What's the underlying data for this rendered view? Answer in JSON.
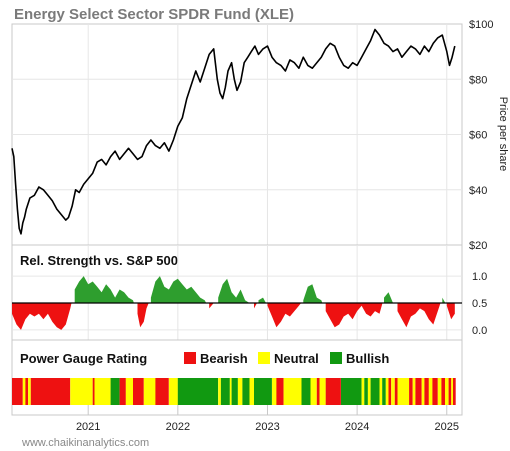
{
  "chart_data": [
    {
      "type": "line",
      "title": "Energy Select Sector SPDR Fund (XLE)",
      "ylabel": "Price per share",
      "ylim": [
        20,
        100
      ],
      "yticks": [
        "$20",
        "$40",
        "$60",
        "$80",
        "$100"
      ],
      "ytick_values": [
        20,
        40,
        60,
        80,
        100
      ],
      "x_range": [
        2020.15,
        2025.17
      ],
      "series": [
        {
          "x": [
            2020.15,
            2020.17,
            2020.19,
            2020.21,
            2020.23,
            2020.25,
            2020.27,
            2020.29,
            2020.31,
            2020.35,
            2020.4,
            2020.45,
            2020.5,
            2020.55,
            2020.6,
            2020.65,
            2020.7,
            2020.75,
            2020.78,
            2020.82,
            2020.86,
            2020.9,
            2020.95,
            2021.0,
            2021.05,
            2021.1,
            2021.15,
            2021.2,
            2021.25,
            2021.3,
            2021.35,
            2021.4,
            2021.45,
            2021.5,
            2021.55,
            2021.6,
            2021.65,
            2021.7,
            2021.75,
            2021.8,
            2021.85,
            2021.9,
            2021.95,
            2022.0,
            2022.05,
            2022.1,
            2022.15,
            2022.2,
            2022.25,
            2022.3,
            2022.35,
            2022.4,
            2022.44,
            2022.47,
            2022.5,
            2022.53,
            2022.56,
            2022.6,
            2022.63,
            2022.66,
            2022.7,
            2022.74,
            2022.78,
            2022.82,
            2022.86,
            2022.9,
            2022.95,
            2023.0,
            2023.05,
            2023.1,
            2023.15,
            2023.2,
            2023.25,
            2023.3,
            2023.35,
            2023.4,
            2023.45,
            2023.5,
            2023.55,
            2023.6,
            2023.65,
            2023.7,
            2023.75,
            2023.8,
            2023.85,
            2023.9,
            2023.95,
            2024.0,
            2024.05,
            2024.1,
            2024.15,
            2024.2,
            2024.25,
            2024.3,
            2024.35,
            2024.4,
            2024.45,
            2024.5,
            2024.55,
            2024.6,
            2024.65,
            2024.7,
            2024.75,
            2024.8,
            2024.85,
            2024.9,
            2024.95,
            2025.0,
            2025.03,
            2025.06,
            2025.09
          ],
          "values": [
            55,
            52,
            42,
            33,
            26,
            24,
            28,
            30,
            33,
            37,
            38,
            41,
            40,
            38,
            36,
            33,
            31,
            29,
            30,
            34,
            40,
            39,
            42,
            44,
            46,
            50,
            51,
            49,
            52,
            54,
            51,
            53,
            55,
            53,
            51,
            52,
            56,
            58,
            56,
            55,
            57,
            54,
            58,
            63,
            66,
            73,
            78,
            83,
            79,
            84,
            89,
            91,
            80,
            75,
            73,
            77,
            83,
            86,
            80,
            76,
            79,
            86,
            88,
            90,
            92,
            89,
            91,
            92,
            88,
            86,
            85,
            83,
            87,
            86,
            84,
            88,
            85,
            84,
            86,
            88,
            91,
            93,
            92,
            88,
            85,
            84,
            86,
            85,
            88,
            91,
            94,
            98,
            96,
            93,
            92,
            90,
            91,
            88,
            90,
            92,
            91,
            89,
            92,
            90,
            93,
            95,
            96,
            90,
            85,
            88,
            92
          ]
        }
      ]
    },
    {
      "type": "area",
      "title": "Rel. Strength vs. S&P 500",
      "ylim": [
        -0.15,
        1.15
      ],
      "baseline": 0.5,
      "yticks": [
        "0.0",
        "0.5",
        "1.0"
      ],
      "ytick_values": [
        0.0,
        0.5,
        1.0
      ],
      "colors": {
        "above": "#2e9e2e",
        "below": "#ee1111"
      },
      "series": [
        {
          "x": [
            2020.15,
            2020.2,
            2020.25,
            2020.3,
            2020.35,
            2020.4,
            2020.45,
            2020.5,
            2020.55,
            2020.6,
            2020.65,
            2020.7,
            2020.75,
            2020.8,
            2020.85,
            2020.9,
            2020.95,
            2021.0,
            2021.05,
            2021.1,
            2021.15,
            2021.2,
            2021.25,
            2021.3,
            2021.35,
            2021.4,
            2021.45,
            2021.5,
            2021.55,
            2021.58,
            2021.62,
            2021.65,
            2021.7,
            2021.75,
            2021.8,
            2021.85,
            2021.9,
            2021.95,
            2022.0,
            2022.05,
            2022.1,
            2022.15,
            2022.2,
            2022.25,
            2022.3,
            2022.35,
            2022.4,
            2022.45,
            2022.5,
            2022.55,
            2022.6,
            2022.65,
            2022.7,
            2022.75,
            2022.8,
            2022.85,
            2022.9,
            2022.95,
            2023.0,
            2023.05,
            2023.1,
            2023.15,
            2023.2,
            2023.25,
            2023.3,
            2023.35,
            2023.4,
            2023.45,
            2023.5,
            2023.55,
            2023.6,
            2023.65,
            2023.7,
            2023.75,
            2023.8,
            2023.85,
            2023.9,
            2023.95,
            2024.0,
            2024.05,
            2024.1,
            2024.15,
            2024.2,
            2024.25,
            2024.3,
            2024.35,
            2024.4,
            2024.45,
            2024.5,
            2024.55,
            2024.6,
            2024.65,
            2024.7,
            2024.75,
            2024.8,
            2024.85,
            2024.9,
            2024.95,
            2025.0,
            2025.05,
            2025.09
          ],
          "values": [
            0.3,
            0.1,
            0.0,
            0.2,
            0.3,
            0.25,
            0.3,
            0.2,
            0.3,
            0.15,
            0.05,
            0.0,
            0.1,
            0.4,
            0.75,
            0.9,
            1.0,
            0.85,
            0.9,
            0.8,
            0.7,
            0.85,
            0.75,
            0.6,
            0.75,
            0.7,
            0.6,
            0.55,
            0.3,
            0.05,
            0.15,
            0.4,
            0.6,
            0.9,
            1.0,
            0.8,
            0.75,
            0.9,
            0.95,
            0.85,
            0.75,
            0.8,
            0.7,
            0.6,
            0.55,
            0.4,
            0.5,
            0.6,
            0.85,
            0.95,
            0.7,
            0.6,
            0.75,
            0.55,
            0.5,
            0.4,
            0.55,
            0.6,
            0.45,
            0.25,
            0.05,
            0.15,
            0.3,
            0.25,
            0.35,
            0.45,
            0.55,
            0.8,
            0.85,
            0.6,
            0.55,
            0.35,
            0.2,
            0.05,
            0.1,
            0.25,
            0.3,
            0.2,
            0.35,
            0.45,
            0.3,
            0.25,
            0.35,
            0.3,
            0.6,
            0.7,
            0.5,
            0.35,
            0.2,
            0.05,
            0.25,
            0.3,
            0.4,
            0.35,
            0.2,
            0.1,
            0.35,
            0.6,
            0.45,
            0.2,
            0.3
          ]
        }
      ]
    },
    {
      "type": "heatmap",
      "title": "Power Gauge Rating",
      "legend": [
        {
          "label": "Bearish",
          "color": "#ee1111"
        },
        {
          "label": "Neutral",
          "color": "#ffff00"
        },
        {
          "label": "Bullish",
          "color": "#119911"
        }
      ],
      "segments": [
        {
          "start": 2020.15,
          "end": 2020.27,
          "rating": "Bearish"
        },
        {
          "start": 2020.27,
          "end": 2020.3,
          "rating": "Neutral"
        },
        {
          "start": 2020.3,
          "end": 2020.33,
          "rating": "Bearish"
        },
        {
          "start": 2020.33,
          "end": 2020.36,
          "rating": "Neutral"
        },
        {
          "start": 2020.36,
          "end": 2020.8,
          "rating": "Bearish"
        },
        {
          "start": 2020.8,
          "end": 2021.05,
          "rating": "Neutral"
        },
        {
          "start": 2021.05,
          "end": 2021.07,
          "rating": "Bearish"
        },
        {
          "start": 2021.07,
          "end": 2021.25,
          "rating": "Neutral"
        },
        {
          "start": 2021.25,
          "end": 2021.35,
          "rating": "Bullish"
        },
        {
          "start": 2021.35,
          "end": 2021.42,
          "rating": "Bearish"
        },
        {
          "start": 2021.42,
          "end": 2021.5,
          "rating": "Neutral"
        },
        {
          "start": 2021.5,
          "end": 2021.62,
          "rating": "Bearish"
        },
        {
          "start": 2021.62,
          "end": 2021.75,
          "rating": "Neutral"
        },
        {
          "start": 2021.75,
          "end": 2021.9,
          "rating": "Bearish"
        },
        {
          "start": 2021.9,
          "end": 2022.0,
          "rating": "Neutral"
        },
        {
          "start": 2022.0,
          "end": 2022.45,
          "rating": "Bullish"
        },
        {
          "start": 2022.45,
          "end": 2022.48,
          "rating": "Neutral"
        },
        {
          "start": 2022.48,
          "end": 2022.58,
          "rating": "Bullish"
        },
        {
          "start": 2022.58,
          "end": 2022.6,
          "rating": "Neutral"
        },
        {
          "start": 2022.6,
          "end": 2022.67,
          "rating": "Bullish"
        },
        {
          "start": 2022.67,
          "end": 2022.72,
          "rating": "Neutral"
        },
        {
          "start": 2022.72,
          "end": 2022.8,
          "rating": "Bullish"
        },
        {
          "start": 2022.8,
          "end": 2022.85,
          "rating": "Neutral"
        },
        {
          "start": 2022.85,
          "end": 2023.05,
          "rating": "Bullish"
        },
        {
          "start": 2023.05,
          "end": 2023.1,
          "rating": "Neutral"
        },
        {
          "start": 2023.1,
          "end": 2023.18,
          "rating": "Bearish"
        },
        {
          "start": 2023.18,
          "end": 2023.38,
          "rating": "Neutral"
        },
        {
          "start": 2023.38,
          "end": 2023.48,
          "rating": "Bullish"
        },
        {
          "start": 2023.48,
          "end": 2023.55,
          "rating": "Neutral"
        },
        {
          "start": 2023.55,
          "end": 2023.58,
          "rating": "Bearish"
        },
        {
          "start": 2023.58,
          "end": 2023.65,
          "rating": "Neutral"
        },
        {
          "start": 2023.65,
          "end": 2023.82,
          "rating": "Bearish"
        },
        {
          "start": 2023.82,
          "end": 2024.05,
          "rating": "Bullish"
        },
        {
          "start": 2024.05,
          "end": 2024.08,
          "rating": "Neutral"
        },
        {
          "start": 2024.08,
          "end": 2024.12,
          "rating": "Bullish"
        },
        {
          "start": 2024.12,
          "end": 2024.15,
          "rating": "Neutral"
        },
        {
          "start": 2024.15,
          "end": 2024.25,
          "rating": "Bullish"
        },
        {
          "start": 2024.25,
          "end": 2024.28,
          "rating": "Neutral"
        },
        {
          "start": 2024.28,
          "end": 2024.32,
          "rating": "Bullish"
        },
        {
          "start": 2024.32,
          "end": 2024.35,
          "rating": "Neutral"
        },
        {
          "start": 2024.35,
          "end": 2024.38,
          "rating": "Bearish"
        },
        {
          "start": 2024.38,
          "end": 2024.42,
          "rating": "Neutral"
        },
        {
          "start": 2024.42,
          "end": 2024.45,
          "rating": "Bearish"
        },
        {
          "start": 2024.45,
          "end": 2024.58,
          "rating": "Neutral"
        },
        {
          "start": 2024.58,
          "end": 2024.62,
          "rating": "Bearish"
        },
        {
          "start": 2024.62,
          "end": 2024.65,
          "rating": "Neutral"
        },
        {
          "start": 2024.65,
          "end": 2024.72,
          "rating": "Bearish"
        },
        {
          "start": 2024.72,
          "end": 2024.75,
          "rating": "Neutral"
        },
        {
          "start": 2024.75,
          "end": 2024.8,
          "rating": "Bearish"
        },
        {
          "start": 2024.8,
          "end": 2024.84,
          "rating": "Neutral"
        },
        {
          "start": 2024.84,
          "end": 2024.9,
          "rating": "Bearish"
        },
        {
          "start": 2024.9,
          "end": 2024.94,
          "rating": "Neutral"
        },
        {
          "start": 2024.94,
          "end": 2024.98,
          "rating": "Bearish"
        },
        {
          "start": 2024.98,
          "end": 2025.02,
          "rating": "Neutral"
        },
        {
          "start": 2025.02,
          "end": 2025.05,
          "rating": "Bearish"
        },
        {
          "start": 2025.05,
          "end": 2025.07,
          "rating": "Neutral"
        },
        {
          "start": 2025.07,
          "end": 2025.1,
          "rating": "Bearish"
        }
      ]
    }
  ],
  "x_axis": {
    "ticks": [
      "2021",
      "2022",
      "2023",
      "2024",
      "2025"
    ],
    "tick_values": [
      2021.0,
      2022.0,
      2023.0,
      2024.0,
      2025.0
    ]
  },
  "source": "www.chaikinanalytics.com"
}
